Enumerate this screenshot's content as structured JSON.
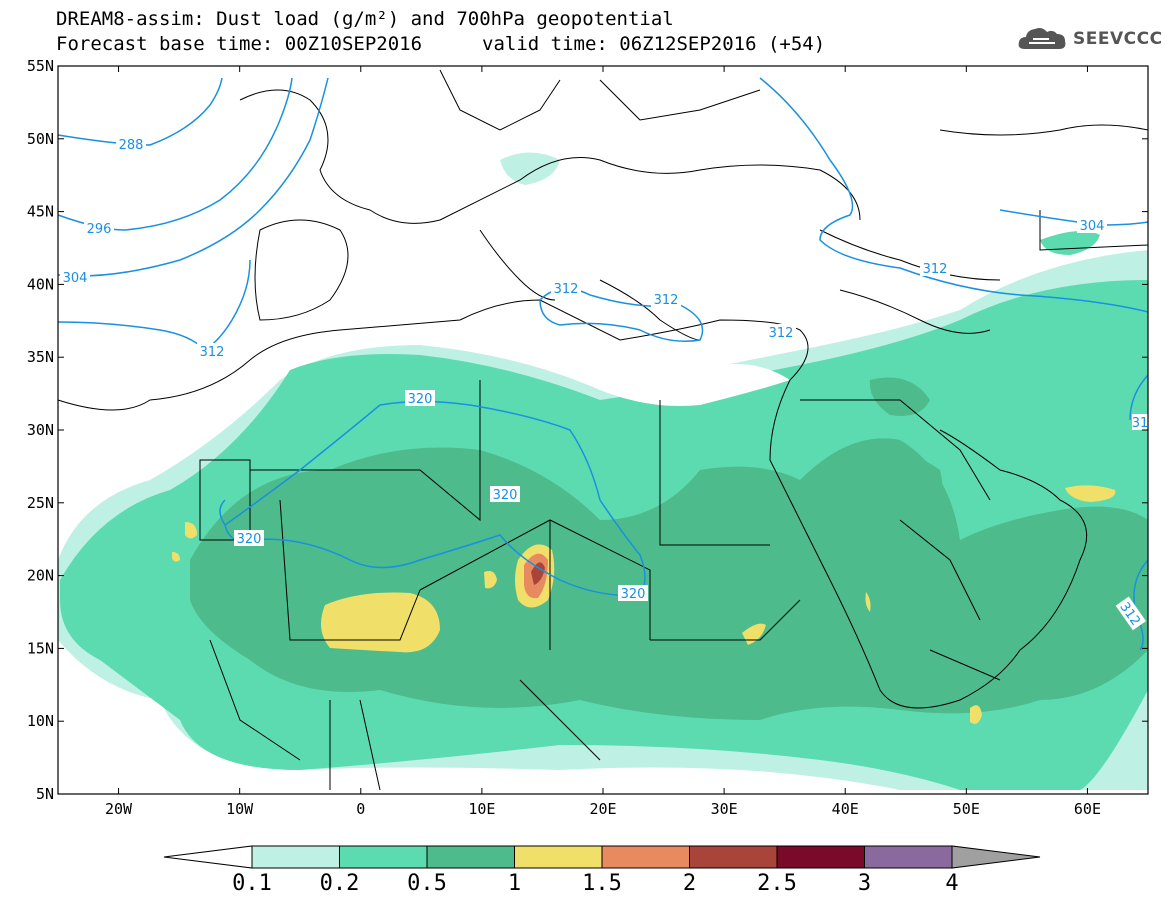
{
  "header": {
    "title": "DREAM8-assim: Dust load (g/m²) and 700hPa geopotential",
    "base_time": "Forecast base time: 00Z10SEP2016",
    "valid_time": "valid time: 06Z12SEP2016 (+54)"
  },
  "logo": {
    "text": "SEEVCCC",
    "icon": "cloud-icon"
  },
  "map": {
    "lon_range": [
      -25,
      65
    ],
    "lat_range": [
      5,
      55
    ],
    "lat_ticks": [
      "55N",
      "50N",
      "45N",
      "40N",
      "35N",
      "30N",
      "25N",
      "20N",
      "15N",
      "10N",
      "5N"
    ],
    "lon_ticks": [
      "20W",
      "10W",
      "0",
      "10E",
      "20E",
      "30E",
      "40E",
      "50E",
      "60E"
    ],
    "contour_labels": [
      "288",
      "296",
      "304",
      "312",
      "312",
      "312",
      "312",
      "312",
      "320",
      "320",
      "320",
      "320",
      "304",
      "312",
      "31"
    ],
    "colors": {
      "dust_0_1": "#bff0e4",
      "dust_0_2": "#5ddbb0",
      "dust_0_5": "#4dbb8c",
      "dust_1": "#f0e06a",
      "dust_1_5": "#e88a60",
      "dust_2": "#a8443a",
      "contour": "#1a90e0"
    }
  },
  "colorbar": {
    "labels": [
      "0.1",
      "0.2",
      "0.5",
      "1",
      "1.5",
      "2",
      "2.5",
      "3",
      "4"
    ],
    "colors": [
      "#ffffff",
      "#bff0e4",
      "#5ddbb0",
      "#4dbb8c",
      "#f0e06a",
      "#e88a60",
      "#a8443a",
      "#7a0a2a",
      "#8a6a9e",
      "#a0a0a0"
    ]
  }
}
